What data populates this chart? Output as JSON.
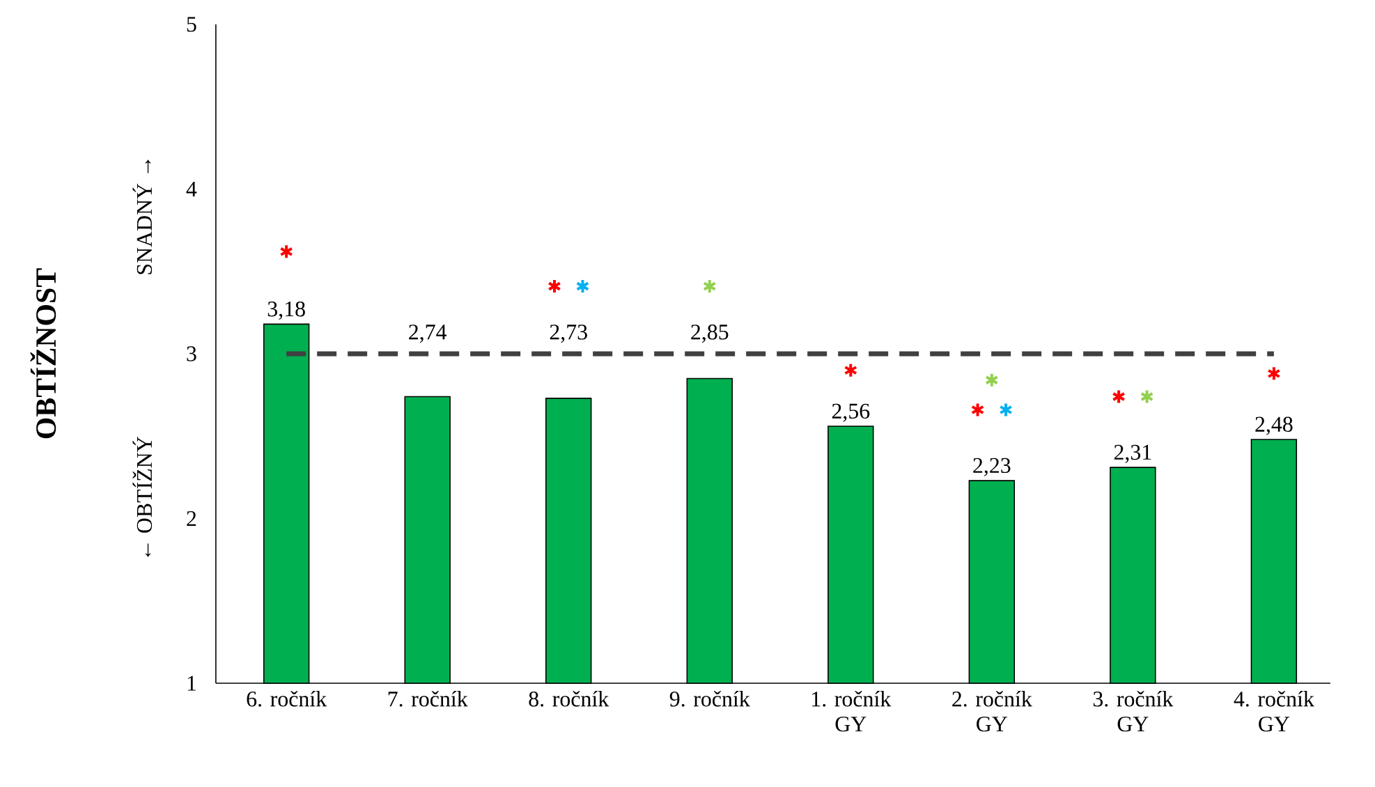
{
  "chart_data": {
    "type": "bar",
    "categories": [
      "6. ročník",
      "7. ročník",
      "8. ročník",
      "9. ročník",
      "1. ročník GY",
      "2. ročník GY",
      "3. ročník GY",
      "4. ročník GY"
    ],
    "series": [
      {
        "color": "#00b050",
        "values": [
          3.18,
          2.74,
          2.73,
          2.85,
          2.56,
          2.23,
          2.31,
          2.48
        ],
        "value_labels": [
          "3,18",
          "2,74",
          "2,73",
          "2,85",
          "2,56",
          "2,23",
          "2,31",
          "2,48"
        ]
      },
      {
        "type": "scatter",
        "color": "#ff0000",
        "marker": "cross",
        "x": [
          "6. ročník",
          "8. ročník",
          "1. ročník GY",
          "2. ročník GY",
          "3. ročník GY",
          "4. ročník GY"
        ],
        "values": [
          3.62,
          3.41,
          2.9,
          2.66,
          2.74,
          2.88
        ]
      },
      {
        "type": "scatter",
        "color": "#00b0f0",
        "marker": "cross",
        "x": [
          "8. ročník",
          "2. ročník GY"
        ],
        "values": [
          3.41,
          2.66
        ]
      },
      {
        "type": "scatter",
        "color": "#92d050",
        "marker": "cross",
        "x": [
          "9. ročník",
          "2. ročník GY",
          "3. ročník GY"
        ],
        "values": [
          3.41,
          2.84,
          2.74
        ]
      }
    ],
    "ylim": [
      1,
      5
    ],
    "yticks": [
      1,
      2,
      3,
      4,
      5
    ],
    "grid": false,
    "ref_lines": [
      {
        "axis": "y",
        "value": 3,
        "color": "#404040",
        "line_style": "dashed"
      }
    ],
    "annotations": [
      "OBTÍŽNOST",
      "← OBTÍŽNÝ",
      "SNADNÝ →"
    ]
  }
}
